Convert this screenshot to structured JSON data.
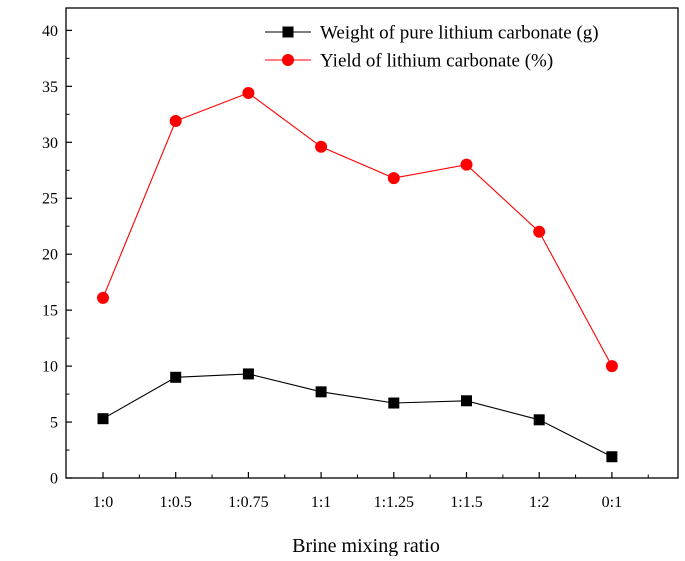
{
  "chart_data": {
    "type": "line",
    "title": "",
    "xlabel": "Brine mixing ratio",
    "ylabel": "",
    "categories": [
      "1:0",
      "1:0.5",
      "1:0.75",
      "1:1",
      "1:1.25",
      "1:1.5",
      "1:2",
      "0:1"
    ],
    "ylim": [
      0,
      42
    ],
    "yticks": [
      0,
      5,
      10,
      15,
      20,
      25,
      30,
      35,
      40
    ],
    "grid": false,
    "legend_position": "top-right",
    "series": [
      {
        "name": "Weight of pure lithium carbonate (g)",
        "marker": "square",
        "color": "#000000",
        "values": [
          5.3,
          9.0,
          9.3,
          7.7,
          6.7,
          6.9,
          5.2,
          1.9
        ]
      },
      {
        "name": "Yield of lithium carbonate (%)",
        "marker": "circle",
        "color": "#ff0000",
        "values": [
          16.1,
          31.9,
          34.4,
          29.6,
          26.8,
          28.0,
          22.0,
          10.0
        ]
      }
    ]
  }
}
